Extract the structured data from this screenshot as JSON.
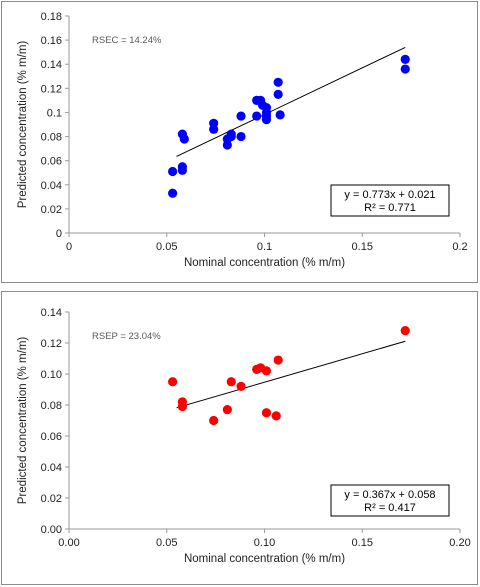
{
  "chart_data": [
    {
      "type": "scatter",
      "xlabel": "Nominal concentration (% m/m)",
      "ylabel": "Predicted concentration (% m/m)",
      "xlim": [
        0,
        0.2
      ],
      "ylim": [
        0,
        0.18
      ],
      "x_ticks": [
        "0",
        "0.05",
        "0.1",
        "0.15",
        "0.2"
      ],
      "y_ticks": [
        "0",
        "0.02",
        "0.04",
        "0.06",
        "0.08",
        "0.1",
        "0.12",
        "0.14",
        "0.16",
        "0.18"
      ],
      "annotation": "RSEC = 14.24%",
      "equation": "y = 0.773x + 0.021",
      "r_squared": "R² = 0.771",
      "trendline": {
        "slope": 0.773,
        "intercept": 0.021,
        "x_range": [
          0.055,
          0.172
        ]
      },
      "marker_color": "#0000ff",
      "series": [
        {
          "points": [
            [
              0.053,
              0.033
            ],
            [
              0.053,
              0.051
            ],
            [
              0.058,
              0.055
            ],
            [
              0.058,
              0.052
            ],
            [
              0.058,
              0.082
            ],
            [
              0.059,
              0.078
            ],
            [
              0.074,
              0.091
            ],
            [
              0.074,
              0.086
            ],
            [
              0.081,
              0.078
            ],
            [
              0.081,
              0.073
            ],
            [
              0.083,
              0.082
            ],
            [
              0.083,
              0.08
            ],
            [
              0.088,
              0.097
            ],
            [
              0.088,
              0.08
            ],
            [
              0.096,
              0.11
            ],
            [
              0.096,
              0.097
            ],
            [
              0.098,
              0.11
            ],
            [
              0.099,
              0.106
            ],
            [
              0.101,
              0.104
            ],
            [
              0.101,
              0.1
            ],
            [
              0.101,
              0.097
            ],
            [
              0.101,
              0.094
            ],
            [
              0.107,
              0.125
            ],
            [
              0.107,
              0.115
            ],
            [
              0.108,
              0.098
            ],
            [
              0.172,
              0.144
            ],
            [
              0.172,
              0.136
            ]
          ]
        }
      ]
    },
    {
      "type": "scatter",
      "xlabel": "Nominal concentration (% m/m)",
      "ylabel": "Predicted concentration (% m/m)",
      "xlim": [
        0,
        0.2
      ],
      "ylim": [
        0,
        0.14
      ],
      "x_ticks": [
        "0.00",
        "0.05",
        "0.10",
        "0.15",
        "0.20"
      ],
      "y_ticks": [
        "0.00",
        "0.02",
        "0.04",
        "0.06",
        "0.08",
        "0.10",
        "0.12",
        "0.14"
      ],
      "annotation": "RSEP = 23.04%",
      "equation": "y = 0.367x + 0.058",
      "r_squared": "R² = 0.417",
      "trendline": {
        "slope": 0.367,
        "intercept": 0.058,
        "x_range": [
          0.055,
          0.172
        ]
      },
      "marker_color": "#ff0000",
      "series": [
        {
          "points": [
            [
              0.053,
              0.095
            ],
            [
              0.058,
              0.082
            ],
            [
              0.058,
              0.079
            ],
            [
              0.074,
              0.07
            ],
            [
              0.081,
              0.077
            ],
            [
              0.083,
              0.095
            ],
            [
              0.088,
              0.092
            ],
            [
              0.096,
              0.103
            ],
            [
              0.098,
              0.104
            ],
            [
              0.101,
              0.102
            ],
            [
              0.101,
              0.075
            ],
            [
              0.106,
              0.073
            ],
            [
              0.107,
              0.109
            ],
            [
              0.172,
              0.128
            ]
          ]
        }
      ]
    }
  ]
}
